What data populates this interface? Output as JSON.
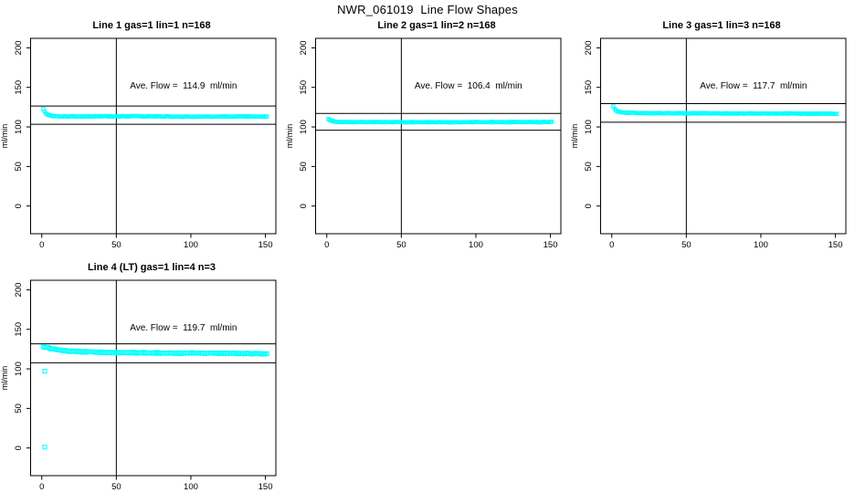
{
  "figure": {
    "title": "NWR_061019  Line Flow Shapes",
    "background_color": "#ffffff",
    "line_color": "#000000"
  },
  "chart_data": {
    "type": "scatter",
    "title": "NWR_061019  Line Flow Shapes",
    "marker": {
      "shape": "open-square",
      "color": "#00FFFF"
    },
    "axes": {
      "xticks": [
        0,
        50,
        100,
        150
      ],
      "yticks": [
        0,
        50,
        100,
        150,
        200
      ],
      "xlim": [
        -7.5,
        157
      ],
      "ylim": [
        -35,
        212
      ],
      "ylabel": "ml/min",
      "xlabel": "",
      "vline_x": 50,
      "samples_drawn": 168,
      "x_range_of_data": [
        1,
        151
      ],
      "annotation_xy": [
        95,
        150
      ],
      "grid": false
    },
    "panels": [
      {
        "title": "Line 1 gas=1 lin=1 n=168",
        "annotation": "Ave. Flow =  114.9  ml/min",
        "ave_flow": 114.9,
        "n": 168,
        "hlines": [
          103.4,
          126.4
        ],
        "profile": [
          [
            1,
            122.5
          ],
          [
            2,
            119
          ],
          [
            3,
            116.5
          ],
          [
            5,
            114.5
          ],
          [
            8,
            113.5
          ],
          [
            20,
            113.2
          ],
          [
            60,
            113.5
          ],
          [
            100,
            113.0
          ],
          [
            151,
            113.2
          ]
        ],
        "noise": 0.55,
        "marker_size": 3.4,
        "outliers": []
      },
      {
        "title": "Line 2 gas=1 lin=2 n=168",
        "annotation": "Ave. Flow =  106.4  ml/min",
        "ave_flow": 106.4,
        "n": 168,
        "hlines": [
          95.8,
          117.0
        ],
        "profile": [
          [
            1,
            110
          ],
          [
            2,
            108.5
          ],
          [
            4,
            107
          ],
          [
            8,
            106.3
          ],
          [
            40,
            106
          ],
          [
            151,
            106.2
          ]
        ],
        "noise": 0.5,
        "marker_size": 3.4,
        "outliers": []
      },
      {
        "title": "Line 3 gas=1 lin=3 n=168",
        "annotation": "Ave. Flow =  117.7  ml/min",
        "ave_flow": 117.7,
        "n": 168,
        "hlines": [
          105.9,
          129.5
        ],
        "profile": [
          [
            1,
            126
          ],
          [
            2,
            122.5
          ],
          [
            4,
            119.5
          ],
          [
            8,
            118
          ],
          [
            30,
            117.3
          ],
          [
            151,
            116.8
          ]
        ],
        "noise": 0.55,
        "marker_size": 3.4,
        "outliers": []
      },
      {
        "title": "Line 4 (LT) gas=1 lin=4 n=3",
        "annotation": "Ave. Flow =  119.7  ml/min",
        "ave_flow": 119.7,
        "n": 3,
        "hlines": [
          107.7,
          131.7
        ],
        "profile": [
          [
            1,
            128
          ],
          [
            4,
            126.5
          ],
          [
            8,
            125
          ],
          [
            14,
            123.5
          ],
          [
            22,
            122
          ],
          [
            35,
            121
          ],
          [
            55,
            120.5
          ],
          [
            85,
            120
          ],
          [
            115,
            119.6
          ],
          [
            151,
            119.2
          ]
        ],
        "noise": 0.9,
        "marker_size": 4.2,
        "outliers": [
          [
            2,
            97
          ],
          [
            2,
            1
          ]
        ]
      }
    ]
  }
}
